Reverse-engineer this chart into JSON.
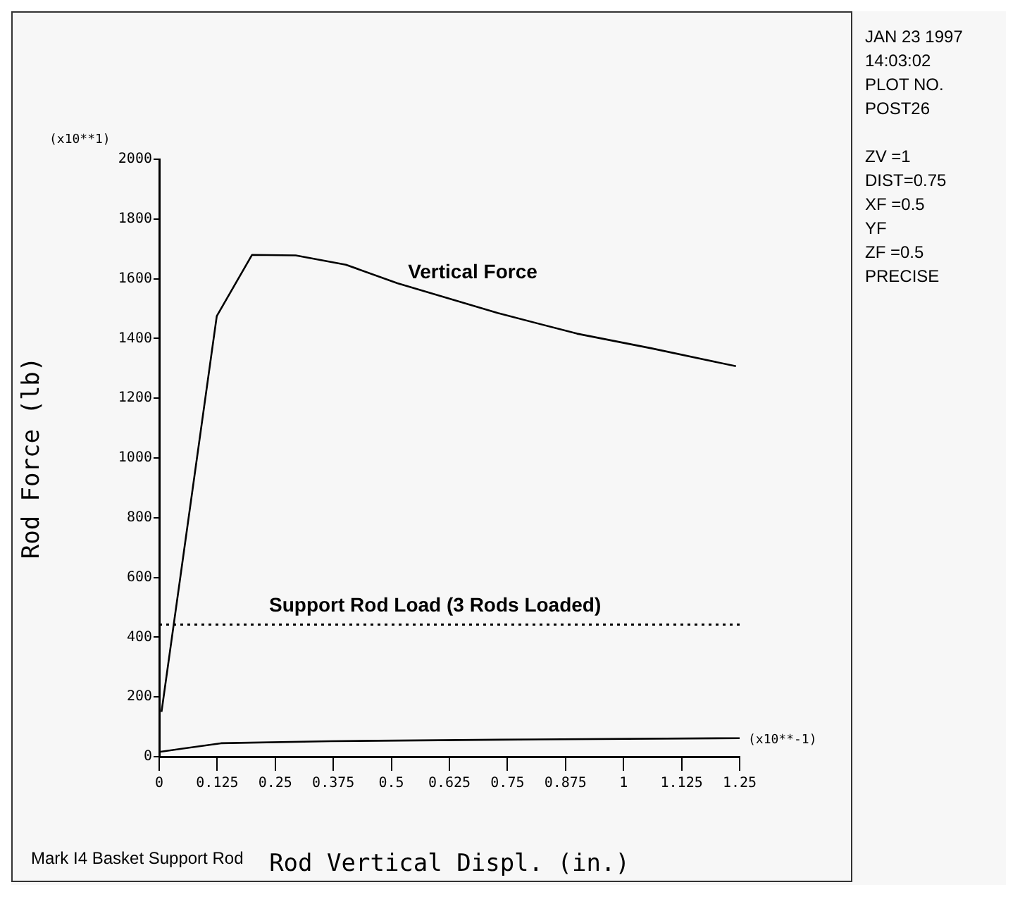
{
  "chart_data": {
    "type": "line",
    "xlabel": "Rod Vertical Displ. (in.)",
    "ylabel": "Rod Force (lb)",
    "xlim": [
      0,
      1.25
    ],
    "xticks": [
      0,
      0.125,
      0.25,
      0.375,
      0.5,
      0.625,
      0.75,
      0.875,
      1,
      1.125,
      1.25
    ],
    "ylim": [
      0,
      2000
    ],
    "yticks": [
      0,
      200,
      400,
      600,
      800,
      1000,
      1200,
      1400,
      1600,
      1800,
      2000
    ],
    "series": [
      {
        "color": "#000000",
        "x": [
          0.005,
          0.124,
          0.2,
          0.294,
          0.402,
          0.513,
          0.729,
          0.9,
          1.06,
          1.242
        ],
        "values": [
          150,
          1475,
          1680,
          1678,
          1647,
          1585,
          1485,
          1416,
          1367,
          1307
        ]
      },
      {
        "color": "#000000",
        "x": [
          0,
          0.133,
          0.37,
          0.734,
          1.25
        ],
        "values": [
          16,
          45,
          52,
          57,
          62
        ]
      }
    ],
    "ref_lines": [
      {
        "axis": "y",
        "value": 442,
        "label": "Support Rod Load (3 Rods Loaded)",
        "color": "#000000",
        "line_style": "dotted"
      }
    ],
    "annotations": [
      "Vertical Force",
      "(x10**1)",
      "(x10**-1)",
      "Mark I4 Basket Support Rod",
      "JAN 23 1997",
      "14:03:02",
      "PLOT NO.",
      "POST26",
      "ZV =1",
      "DIST=0.75",
      "XF =0.5",
      "YF",
      "ZF =0.5",
      "PRECISE"
    ],
    "legend": false,
    "grid": false,
    "marker": "none",
    "line_style": "solid"
  }
}
